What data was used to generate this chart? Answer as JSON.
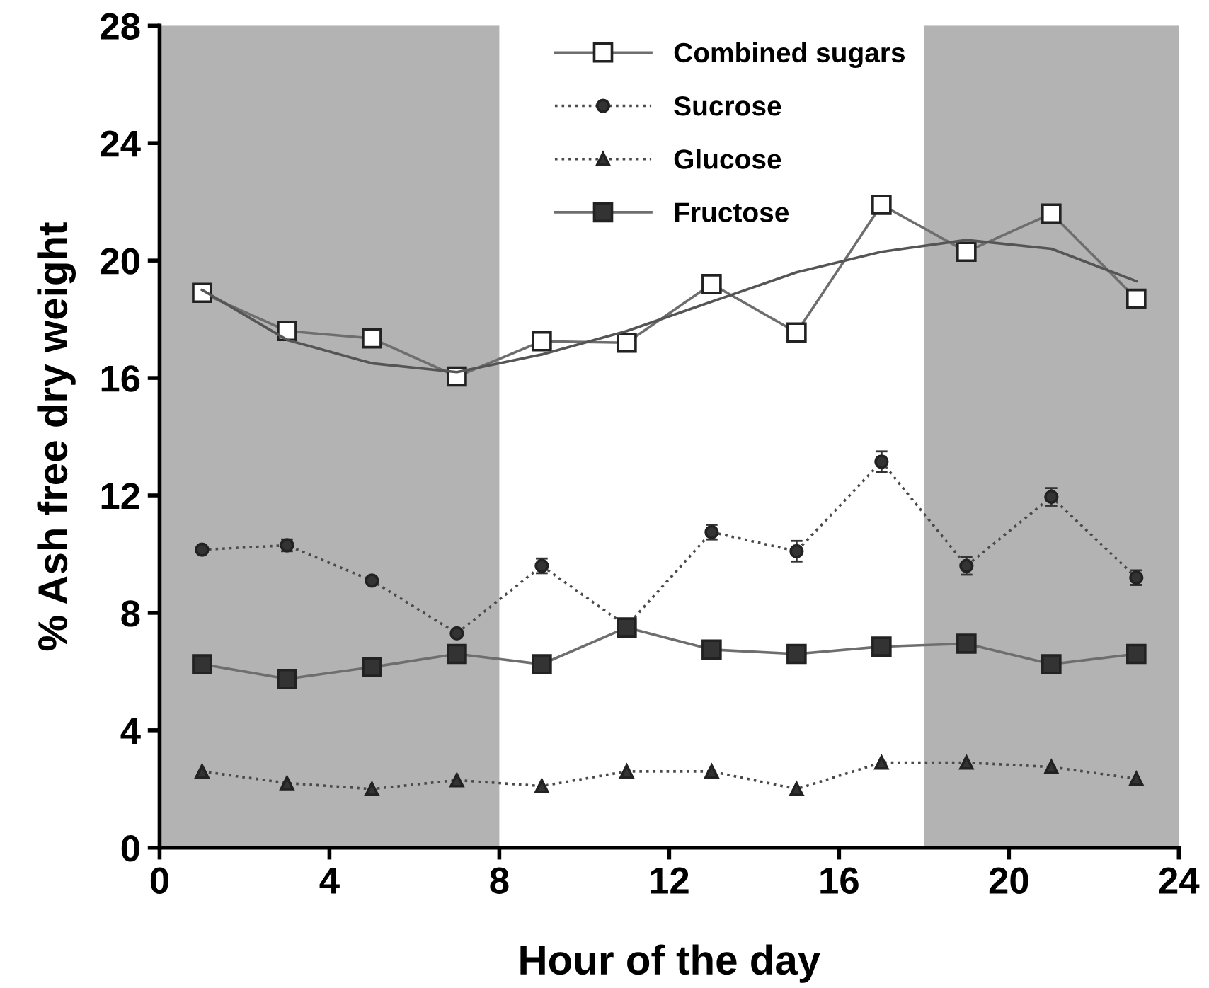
{
  "chart_data": {
    "type": "line",
    "xlabel": "Hour of the day",
    "ylabel": "% Ash free dry weight",
    "xlim": [
      0,
      24
    ],
    "xticks": [
      0,
      4,
      8,
      12,
      16,
      20,
      24
    ],
    "ylim": [
      0,
      28
    ],
    "yticks": [
      0,
      4,
      8,
      12,
      16,
      20,
      24,
      28
    ],
    "grid": false,
    "legend": "top",
    "bands": [
      {
        "axis": "x",
        "from": 0,
        "to": 8,
        "color": "#b3b3b3"
      },
      {
        "axis": "x",
        "from": 18,
        "to": 24,
        "color": "#b3b3b3"
      }
    ],
    "x": [
      1,
      3,
      5,
      7,
      9,
      11,
      13,
      15,
      17,
      19,
      21,
      23
    ],
    "series": [
      {
        "name": "Combined sugars",
        "color": "#6e6e6e",
        "marker": "square",
        "line_style": "solid",
        "values": [
          18.9,
          17.6,
          17.35,
          16.05,
          17.25,
          17.2,
          19.2,
          17.55,
          21.9,
          20.3,
          21.6,
          18.7
        ]
      },
      {
        "name": "Sucrose",
        "color": "#4a4a4a",
        "marker": "circle",
        "line_style": "dotted",
        "values": [
          10.15,
          10.3,
          9.1,
          7.3,
          9.6,
          7.55,
          10.75,
          10.1,
          13.15,
          9.6,
          11.95,
          9.2
        ],
        "errors": [
          0.1,
          0.2,
          0.1,
          0.1,
          0.25,
          0.1,
          0.25,
          0.35,
          0.35,
          0.3,
          0.3,
          0.25
        ]
      },
      {
        "name": "Glucose",
        "color": "#4a4a4a",
        "marker": "triangle",
        "line_style": "dotted",
        "values": [
          2.6,
          2.2,
          2.0,
          2.3,
          2.1,
          2.6,
          2.6,
          2.0,
          2.9,
          2.9,
          2.75,
          2.35
        ]
      },
      {
        "name": "Fructose",
        "color": "#6e6e6e",
        "marker": "square",
        "line_style": "solid",
        "values": [
          6.25,
          5.75,
          6.15,
          6.6,
          6.25,
          7.5,
          6.75,
          6.6,
          6.85,
          6.95,
          6.25,
          6.6
        ]
      },
      {
        "type": "line",
        "color": "#555555",
        "marker": "none",
        "line_style": "solid",
        "x": [
          1,
          3,
          5,
          7,
          9,
          11,
          13,
          15,
          17,
          19,
          21,
          23
        ],
        "values": [
          19.0,
          17.3,
          16.5,
          16.2,
          16.8,
          17.6,
          18.6,
          19.6,
          20.3,
          20.7,
          20.4,
          19.3
        ]
      }
    ]
  }
}
